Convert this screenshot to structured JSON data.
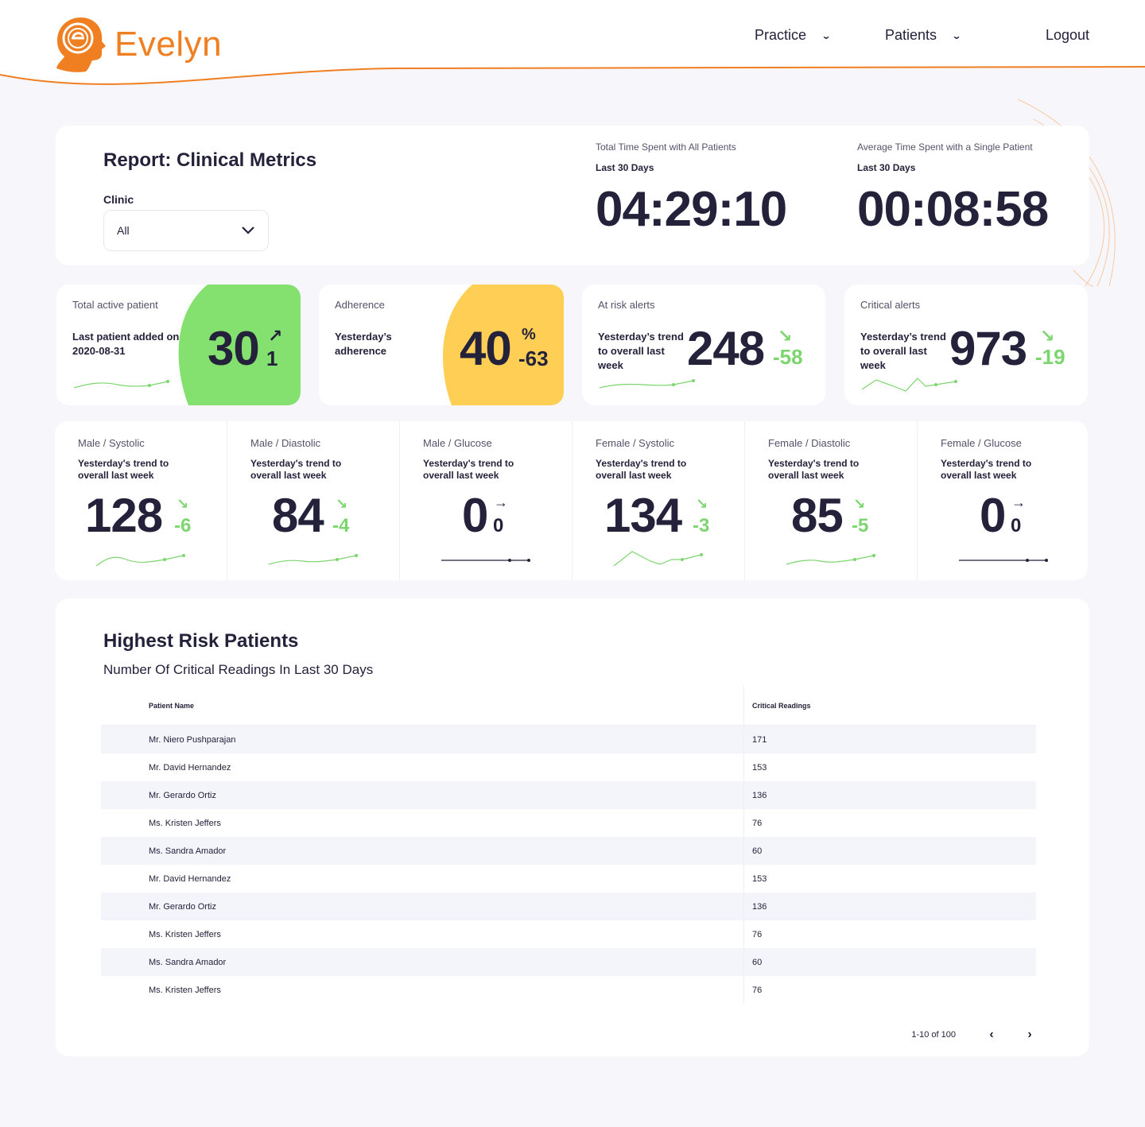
{
  "brand": {
    "name": "Evelyn",
    "color": "#f07f22"
  },
  "nav": {
    "practice": "Practice",
    "patients": "Patients",
    "logout": "Logout",
    "chevron": "⌄"
  },
  "report": {
    "title": "Report: Clinical Metrics",
    "clinic_label": "Clinic",
    "clinic_value": "All",
    "total_time": {
      "label": "Total Time Spent with All Patients",
      "period": "Last 30 Days",
      "value": "04:29:10"
    },
    "avg_time": {
      "label": "Average Time Spent with a Single Patient",
      "period": "Last 30 Days",
      "value": "00:08:58"
    }
  },
  "kpis": {
    "active": {
      "title": "Total active patient",
      "sub": "Last patient added on 2020-08-31",
      "value": "30",
      "delta": "1",
      "arrow": "↗",
      "bg": "#84e06f"
    },
    "adherence": {
      "title": "Adherence",
      "sub": "Yesterday’s adherence",
      "value": "40",
      "unit": "%",
      "delta": "-63",
      "bg": "#ffcf55"
    },
    "atrisk": {
      "title": "At risk alerts",
      "sub": "Yesterday’s trend to overall last week",
      "value": "248",
      "delta": "-58",
      "arrow": "↘"
    },
    "critical": {
      "title": "Critical alerts",
      "sub": "Yesterday’s trend to overall last week",
      "value": "973",
      "delta": "-19",
      "arrow": "↘"
    }
  },
  "vitals": [
    {
      "title": "Male / Systolic",
      "sub": "Yesterday's trend to overall last week",
      "value": "128",
      "delta": "-6",
      "arrow": "↘"
    },
    {
      "title": "Male / Diastolic",
      "sub": "Yesterday's trend to overall last week",
      "value": "84",
      "delta": "-4",
      "arrow": "↘"
    },
    {
      "title": "Male / Glucose",
      "sub": "Yesterday's trend to overall last week",
      "value": "0",
      "delta": "0",
      "arrow": "→"
    },
    {
      "title": "Female / Systolic",
      "sub": "Yesterday's trend to overall last week",
      "value": "134",
      "delta": "-3",
      "arrow": "↘"
    },
    {
      "title": "Female / Diastolic",
      "sub": "Yesterday's trend to overall last week",
      "value": "85",
      "delta": "-5",
      "arrow": "↘"
    },
    {
      "title": "Female / Glucose",
      "sub": "Yesterday's trend to overall last week",
      "value": "0",
      "delta": "0",
      "arrow": "→"
    }
  ],
  "table": {
    "title": "Highest Risk Patients",
    "subtitle": "Number Of Critical Readings In Last 30 Days",
    "col_name": "Patient Name",
    "col_readings": "Critical Readings",
    "rows": [
      {
        "name": "Mr. Niero Pushparajan",
        "readings": "171"
      },
      {
        "name": "Mr. David Hernandez",
        "readings": "153"
      },
      {
        "name": "Mr. Gerardo Ortiz",
        "readings": "136"
      },
      {
        "name": "Ms. Kristen Jeffers",
        "readings": "76"
      },
      {
        "name": "Ms. Sandra Amador",
        "readings": "60"
      },
      {
        "name": "Mr. David Hernandez",
        "readings": "153"
      },
      {
        "name": "Mr. Gerardo Ortiz",
        "readings": "136"
      },
      {
        "name": "Ms. Kristen Jeffers",
        "readings": "76"
      },
      {
        "name": "Ms. Sandra Amador",
        "readings": "60"
      },
      {
        "name": "Ms. Kristen Jeffers",
        "readings": "76"
      }
    ],
    "pagination": "1-10 of 100",
    "prev": "‹",
    "next": "›"
  },
  "colors": {
    "green": "#7cd66e",
    "dark": "#24223b",
    "accent": "#f07f22"
  }
}
